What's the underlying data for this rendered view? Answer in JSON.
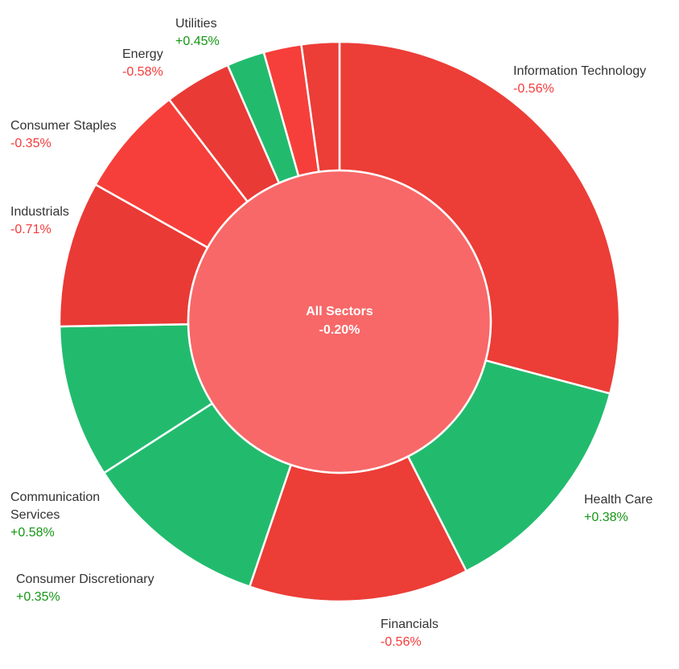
{
  "chart_data": {
    "type": "pie",
    "center": {
      "label": "All Sectors",
      "change": "-0.20%",
      "color": "#f86868"
    },
    "colors": {
      "negative": "#ec3d37",
      "negative_alt": "#f63f3a",
      "positive": "#22bb6e",
      "positive_text": "#159615",
      "negative_text": "#f53a3a"
    },
    "slices": [
      {
        "name": "Information Technology",
        "change": "-0.56%",
        "weight": 29.4,
        "sign": "neg",
        "color": "#ec3d37"
      },
      {
        "name": "Health Care",
        "change": "+0.38%",
        "weight": 13.5,
        "sign": "pos",
        "color": "#22bb6e"
      },
      {
        "name": "Financials",
        "change": "-0.56%",
        "weight": 12.8,
        "sign": "neg",
        "color": "#ec3d37"
      },
      {
        "name": "Consumer Discretionary",
        "change": "+0.35%",
        "weight": 10.8,
        "sign": "pos",
        "color": "#22bb6e"
      },
      {
        "name": "Communication Services",
        "change": "+0.58%",
        "weight": 8.9,
        "sign": "pos",
        "color": "#22bb6e"
      },
      {
        "name": "Industrials",
        "change": "-0.71%",
        "weight": 8.5,
        "sign": "neg",
        "color": "#e93a36"
      },
      {
        "name": "Consumer Staples",
        "change": "-0.35%",
        "weight": 6.5,
        "sign": "neg",
        "color": "#f63f3a"
      },
      {
        "name": "Energy",
        "change": "-0.58%",
        "weight": 3.9,
        "sign": "neg",
        "color": "#e93a36"
      },
      {
        "name": "",
        "change": "",
        "weight": 2.2,
        "sign": "pos",
        "color": "#22bb6e"
      },
      {
        "name": "",
        "change": "",
        "weight": 2.2,
        "sign": "neg",
        "color": "#f63f3a"
      },
      {
        "name": "",
        "change": "",
        "weight": 2.2,
        "sign": "neg",
        "color": "#ec3d37"
      }
    ],
    "extra_labels": [
      {
        "name": "Utilities",
        "change": "+0.45%",
        "sign": "pos"
      }
    ]
  }
}
